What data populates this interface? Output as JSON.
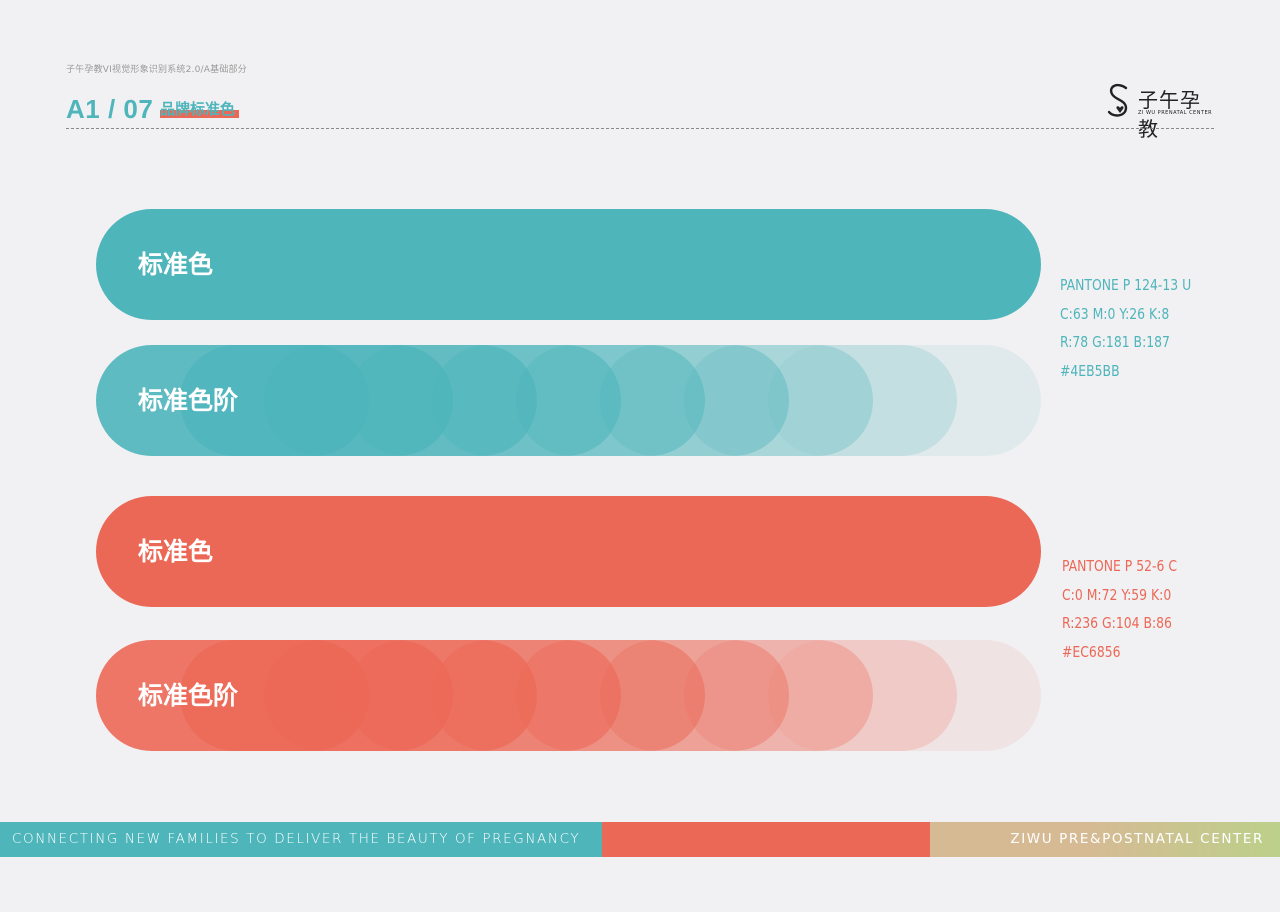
{
  "header": {
    "breadcrumb": "子午孕教VI视觉形象识别系统2.0/A基础部分",
    "page_code": "A1 / 07",
    "section_title": "品牌标准色",
    "logo_name": "子午孕教",
    "logo_sub": "ZI WU PRENATAL CENTER"
  },
  "teal": {
    "color": "#4EB5BB",
    "label_standard": "标准色",
    "label_gradient": "标准色阶",
    "pantone": "PANTONE P 124-13 U",
    "cmyk": "C:63  M:0  Y:26  K:8",
    "rgb": "R:78  G:181  B:187",
    "hex": "#4EB5BB",
    "gradient_opacities": [
      0.1,
      0.2,
      0.3,
      0.4,
      0.5,
      0.6,
      0.7,
      0.8,
      0.9
    ]
  },
  "coral": {
    "color": "#EC6856",
    "label_standard": "标准色",
    "label_gradient": "标准色阶",
    "pantone": "PANTONE P 52-6 C",
    "cmyk": "C:0  M:72  Y:59  K:0",
    "rgb": "R:236  G:104  B:86",
    "hex": "#EC6856",
    "gradient_opacities": [
      0.1,
      0.2,
      0.3,
      0.4,
      0.5,
      0.6,
      0.7,
      0.8,
      0.9
    ]
  },
  "footer": {
    "tagline": "CONNECTING NEW FAMILIES TO DELIVER  THE BEAUTY OF PREGNANCY",
    "center_name": "ZIWU PRE&POSTNATAL CENTER",
    "colors": {
      "teal": "#4EB5BB",
      "coral": "#EC6856",
      "tan": "#D6BA94",
      "green": "#BCD08A"
    }
  }
}
